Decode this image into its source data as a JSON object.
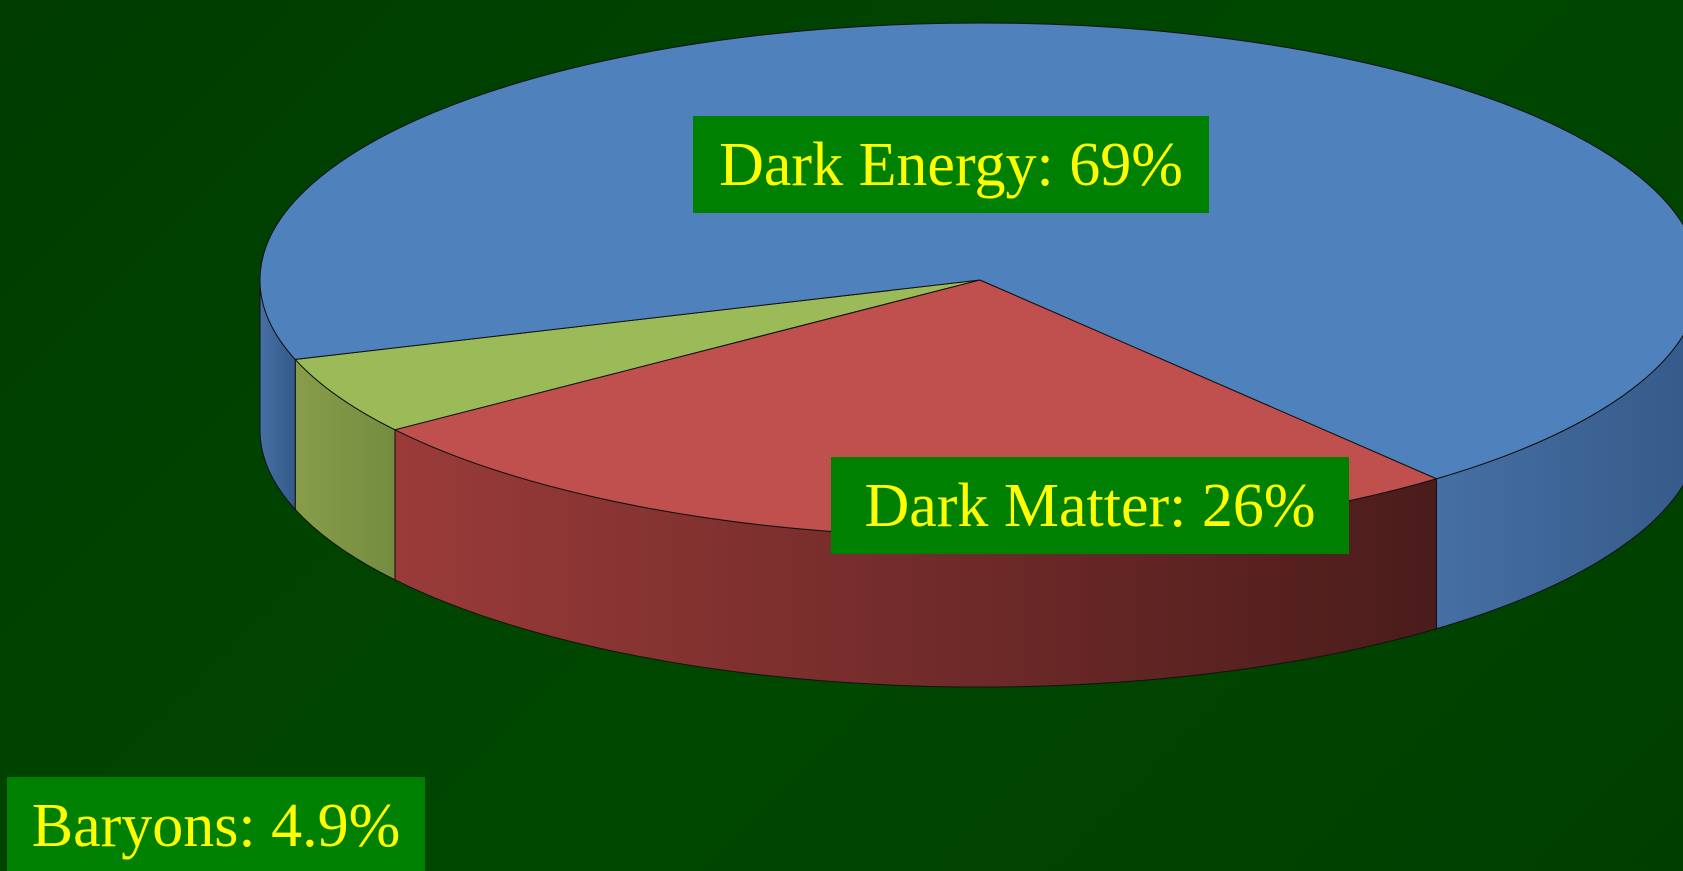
{
  "chart_data": {
    "type": "pie",
    "style": "3d",
    "slices": [
      {
        "name": "Dark Energy",
        "value": 69,
        "label": "Dark Energy: 69%",
        "color": "#4f81bd"
      },
      {
        "name": "Dark Matter",
        "value": 26,
        "label": "Dark Matter: 26%",
        "color": "#c0504d"
      },
      {
        "name": "Baryons",
        "value": 4.9,
        "label": "Baryons: 4.9%",
        "color": "#9bbb59"
      }
    ],
    "label_style": {
      "background": "#008000",
      "text_color": "#ffff00"
    },
    "background_color": "#004000"
  }
}
